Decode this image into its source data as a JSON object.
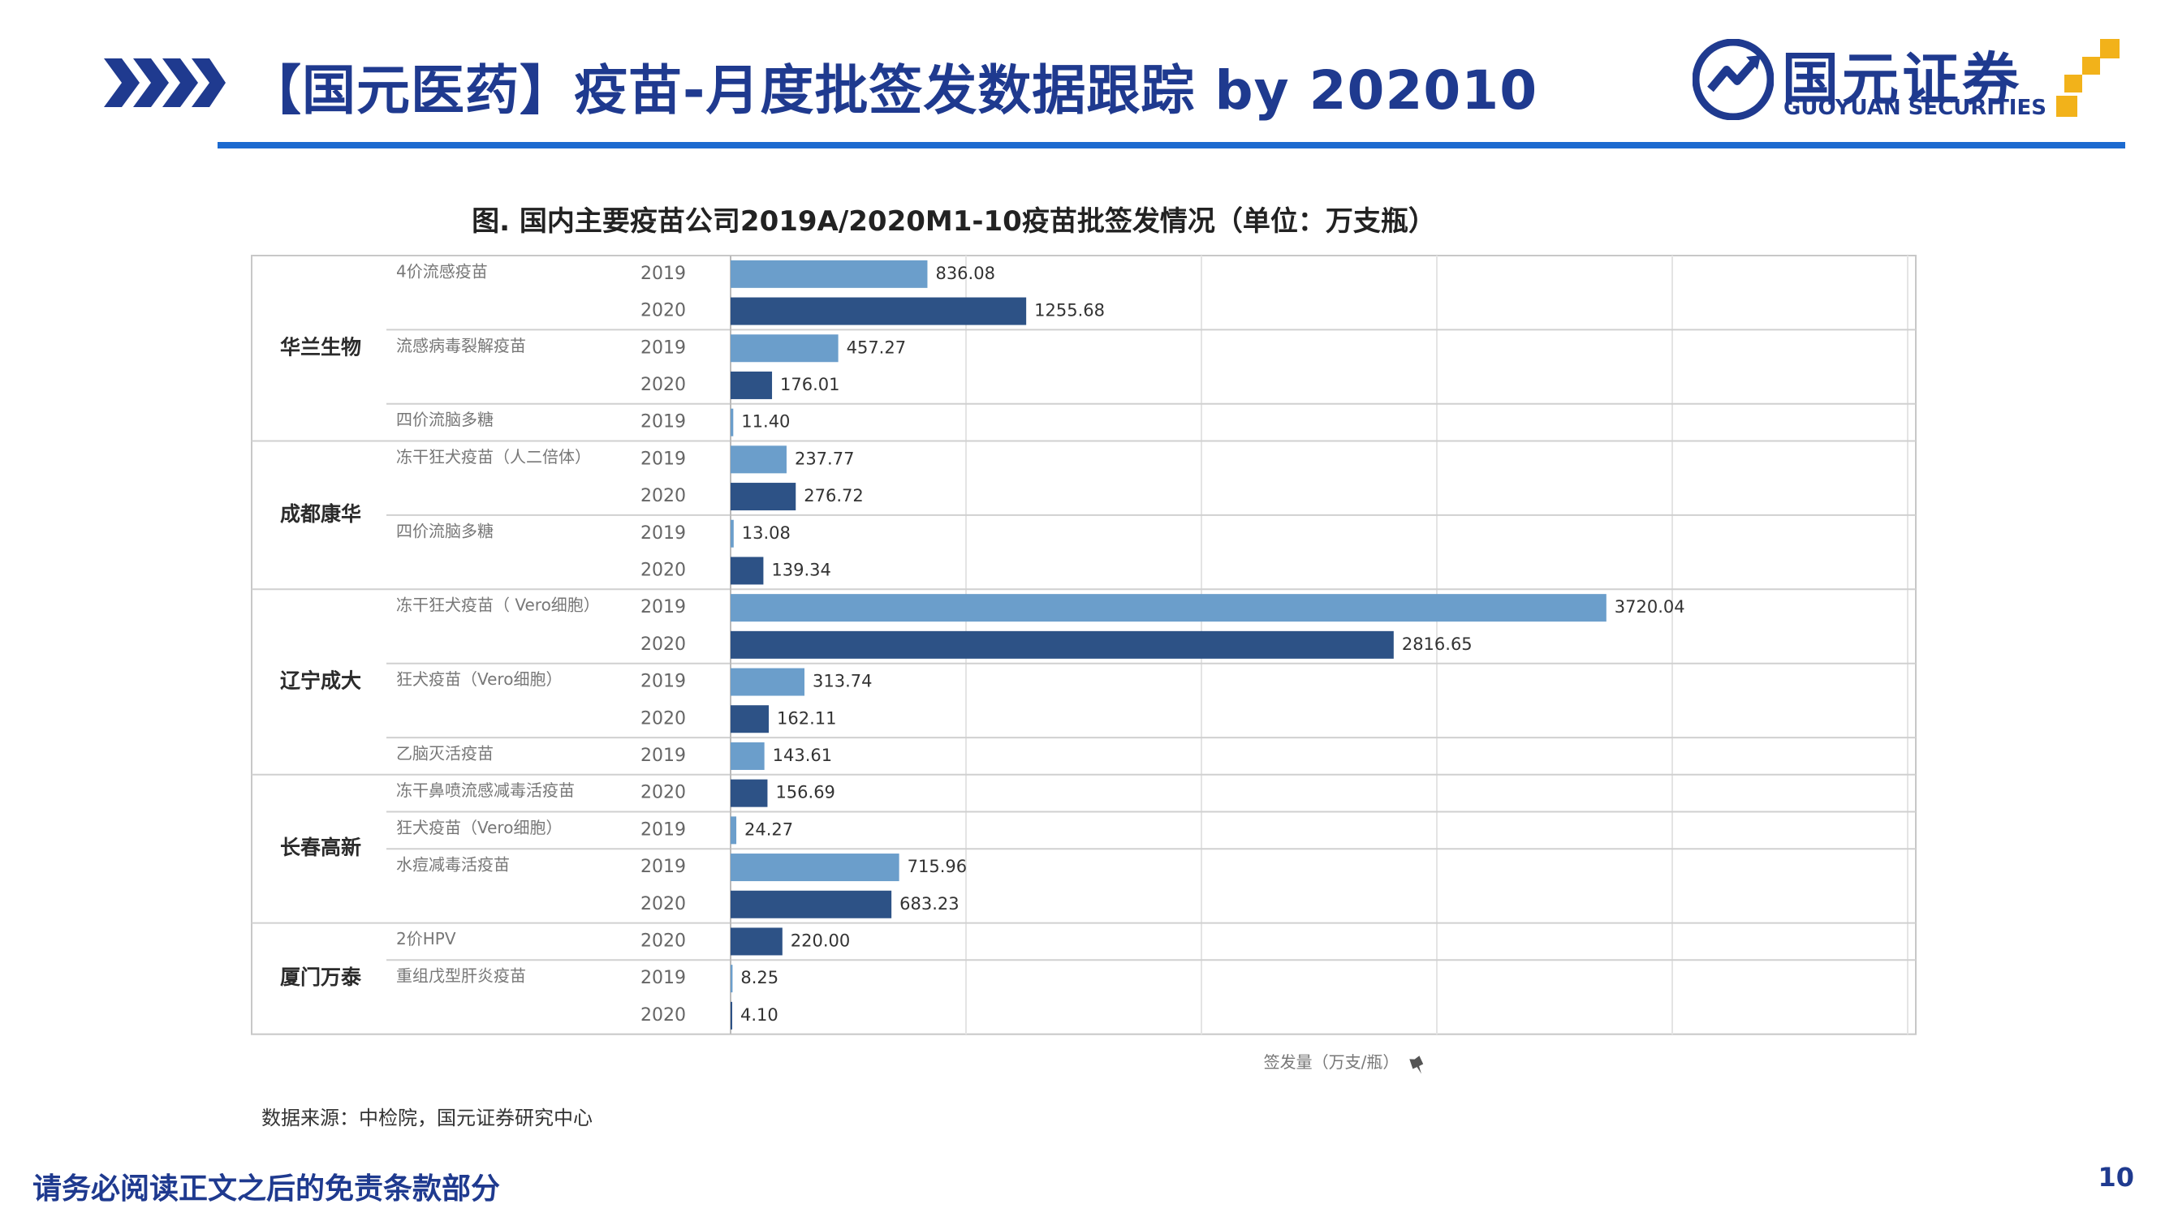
{
  "header": {
    "title": "【国元医药】疫苗-月度批签发数据跟踪 by 202010",
    "logo_cn": "国元证券",
    "logo_en": "GUOYUAN SECURITIES"
  },
  "colors": {
    "accent": "#1f3a8f",
    "rule": "#1c6ad0",
    "bar_2019": "#6b9ecb",
    "bar_2020": "#2d5286",
    "logo_gold": "#f2b21a"
  },
  "chart_data": {
    "type": "bar",
    "orientation": "horizontal",
    "title": "图. 国内主要疫苗公司2019A/2020M1-10疫苗批签发情况（单位：万支瓶）",
    "xlabel": "签发量（万支/瓶）",
    "xlim": [
      0,
      5000
    ],
    "grid": true,
    "legend": "none",
    "companies": [
      "华兰生物",
      "成都康华",
      "辽宁成大",
      "长春高新",
      "厦门万泰"
    ],
    "products": [
      {
        "company": "华兰生物",
        "name": "4价流感疫苗"
      },
      {
        "company": "华兰生物",
        "name": "流感病毒裂解疫苗"
      },
      {
        "company": "华兰生物",
        "name": "四价流脑多糖"
      },
      {
        "company": "成都康华",
        "name": "冻干狂犬疫苗（人二倍体）"
      },
      {
        "company": "成都康华",
        "name": "四价流脑多糖"
      },
      {
        "company": "辽宁成大",
        "name": "冻干狂犬疫苗（ Vero细胞）"
      },
      {
        "company": "辽宁成大",
        "name": "狂犬疫苗（Vero细胞）"
      },
      {
        "company": "辽宁成大",
        "name": "乙脑灭活疫苗"
      },
      {
        "company": "长春高新",
        "name": "冻干鼻喷流感减毒活疫苗"
      },
      {
        "company": "长春高新",
        "name": "狂犬疫苗（Vero细胞）"
      },
      {
        "company": "长春高新",
        "name": "水痘减毒活疫苗"
      },
      {
        "company": "厦门万泰",
        "name": "2价HPV"
      },
      {
        "company": "厦门万泰",
        "name": "重组戊型肝炎疫苗"
      }
    ],
    "rows": [
      {
        "product": 0,
        "year": "2019",
        "value": 836.08,
        "label": "836.08"
      },
      {
        "product": 0,
        "year": "2020",
        "value": 1255.68,
        "label": "1255.68"
      },
      {
        "product": 1,
        "year": "2019",
        "value": 457.27,
        "label": "457.27"
      },
      {
        "product": 1,
        "year": "2020",
        "value": 176.01,
        "label": "176.01"
      },
      {
        "product": 2,
        "year": "2019",
        "value": 11.4,
        "label": "11.40"
      },
      {
        "product": 3,
        "year": "2019",
        "value": 237.77,
        "label": "237.77"
      },
      {
        "product": 3,
        "year": "2020",
        "value": 276.72,
        "label": "276.72"
      },
      {
        "product": 4,
        "year": "2019",
        "value": 13.08,
        "label": "13.08"
      },
      {
        "product": 4,
        "year": "2020",
        "value": 139.34,
        "label": "139.34"
      },
      {
        "product": 5,
        "year": "2019",
        "value": 3720.04,
        "label": "3720.04"
      },
      {
        "product": 5,
        "year": "2020",
        "value": 2816.65,
        "label": "2816.65"
      },
      {
        "product": 6,
        "year": "2019",
        "value": 313.74,
        "label": "313.74"
      },
      {
        "product": 6,
        "year": "2020",
        "value": 162.11,
        "label": "162.11"
      },
      {
        "product": 7,
        "year": "2019",
        "value": 143.61,
        "label": "143.61"
      },
      {
        "product": 8,
        "year": "2020",
        "value": 156.69,
        "label": "156.69"
      },
      {
        "product": 9,
        "year": "2019",
        "value": 24.27,
        "label": "24.27"
      },
      {
        "product": 10,
        "year": "2019",
        "value": 715.96,
        "label": "715.96"
      },
      {
        "product": 10,
        "year": "2020",
        "value": 683.23,
        "label": "683.23"
      },
      {
        "product": 11,
        "year": "2020",
        "value": 220.0,
        "label": "220.00"
      },
      {
        "product": 12,
        "year": "2019",
        "value": 8.25,
        "label": "8.25"
      },
      {
        "product": 12,
        "year": "2020",
        "value": 4.1,
        "label": "4.10"
      }
    ]
  },
  "footer": {
    "source": "数据来源：中检院，国元证券研究中心",
    "disclaimer": "请务必阅读正文之后的免责条款部分",
    "page_number": "10"
  }
}
